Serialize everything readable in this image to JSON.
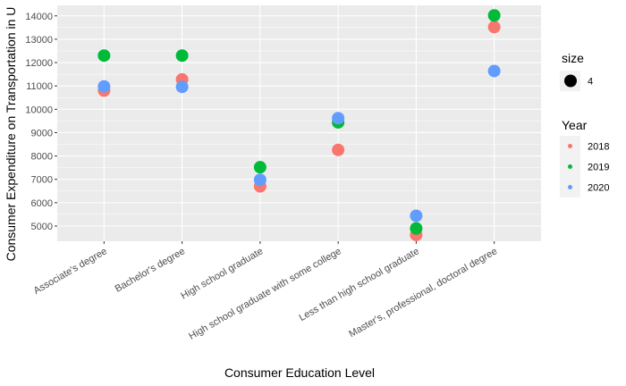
{
  "chart_data": {
    "type": "scatter",
    "title": "",
    "xlabel": "Consumer Education Level",
    "ylabel": "Consumer Expenditure on Transportation in U",
    "categories": [
      "Associate's degree",
      "Bachelor's degree",
      "High school graduate",
      "High school graduate with some college",
      "Less than high school graduate",
      "Master's, professional, doctoral degree"
    ],
    "ylim": [
      4350,
      14450
    ],
    "yticks": [
      "5000",
      "6000",
      "7000",
      "8000",
      "9000",
      "10000",
      "11000",
      "12000",
      "13000",
      "14000"
    ],
    "grid": true,
    "legend_position": "right",
    "series": [
      {
        "name": "2018",
        "color": "#F8766D",
        "values": [
          10800,
          11280,
          6700,
          8260,
          4620,
          13520
        ]
      },
      {
        "name": "2019",
        "color": "#00BA38",
        "values": [
          12300,
          12300,
          7520,
          9440,
          4900,
          14020
        ]
      },
      {
        "name": "2020",
        "color": "#619CFF",
        "values": [
          10980,
          10960,
          6980,
          9620,
          5440,
          11640
        ]
      }
    ],
    "size_legend": {
      "title": "size",
      "value": "4"
    },
    "color_legend": {
      "title": "Year"
    }
  }
}
